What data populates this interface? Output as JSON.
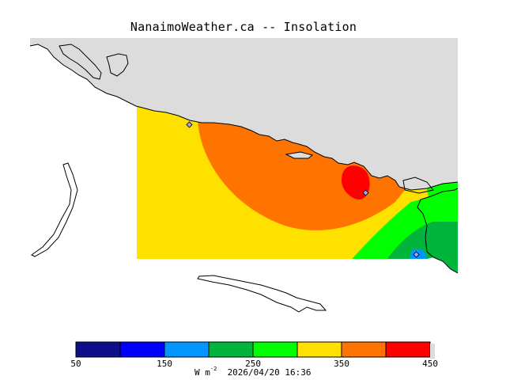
{
  "title": "NanaimoWeather.ca -- Insolation",
  "colors": {
    "land": "#dcdcdc",
    "water": "#ffffff",
    "coast": "#000000",
    "band_300_350": "#ffe100",
    "band_350_400": "#ff7300",
    "band_400_450": "#ff0000",
    "band_250_300": "#00ff00",
    "band_200_250": "#00b43c",
    "band_150_200": "#0096ff",
    "station_marker": "#a0a0ff"
  },
  "colorbar": {
    "bins": [
      {
        "from": 50,
        "to": 100,
        "color": "#0f0f8c"
      },
      {
        "from": 100,
        "to": 150,
        "color": "#0000ff"
      },
      {
        "from": 150,
        "to": 200,
        "color": "#0096ff"
      },
      {
        "from": 200,
        "to": 250,
        "color": "#00b43c"
      },
      {
        "from": 250,
        "to": 300,
        "color": "#00ff00"
      },
      {
        "from": 300,
        "to": 350,
        "color": "#ffe100"
      },
      {
        "from": 350,
        "to": 400,
        "color": "#ff7300"
      },
      {
        "from": 400,
        "to": 450,
        "color": "#ff0000"
      }
    ],
    "tick_labels": [
      "50",
      "150",
      "250",
      "350",
      "450"
    ],
    "units_base": "W m",
    "units_exp": "-2"
  },
  "timestamp": "2026/04/20 16:36"
}
